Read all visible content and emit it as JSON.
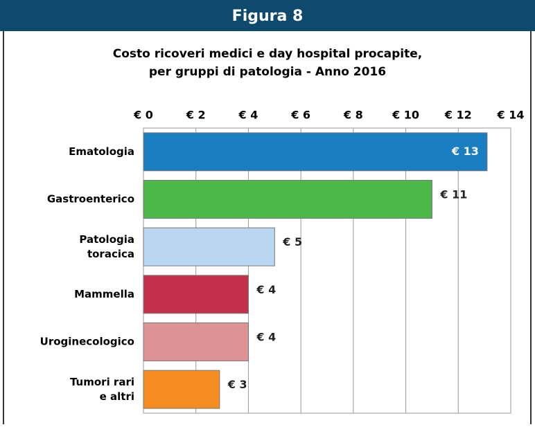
{
  "header": "Figura 8",
  "chart_data": {
    "type": "barh",
    "title": "Costo ricoveri medici e day hospital procapite,\nper gruppi di patologia - Anno 2016",
    "categories": [
      "Ematologia",
      "Gastroenterico",
      "Patologia\ntoracica",
      "Mammella",
      "Uroginecologico",
      "Tumori rari\ne altri"
    ],
    "values": [
      13.1,
      11.0,
      5.0,
      4.0,
      4.0,
      2.9
    ],
    "value_labels": [
      "€ 13",
      "€ 11",
      "€ 5",
      "€ 4",
      "€ 4",
      "€ 3"
    ],
    "colors": [
      "#1a7fc1",
      "#4cb848",
      "#b9d7f0",
      "#c4304c",
      "#de9294",
      "#f48c20"
    ],
    "xlim": [
      0,
      14
    ],
    "xticks": [
      {
        "value": 0,
        "label": "€ 0"
      },
      {
        "value": 2,
        "label": "€ 2"
      },
      {
        "value": 4,
        "label": "€ 4"
      },
      {
        "value": 6,
        "label": "€ 6"
      },
      {
        "value": 8,
        "label": "€ 8"
      },
      {
        "value": 10,
        "label": "€ 10"
      },
      {
        "value": 12,
        "label": "€ 12"
      },
      {
        "value": 14,
        "label": "€ 14"
      }
    ],
    "grid": true
  }
}
